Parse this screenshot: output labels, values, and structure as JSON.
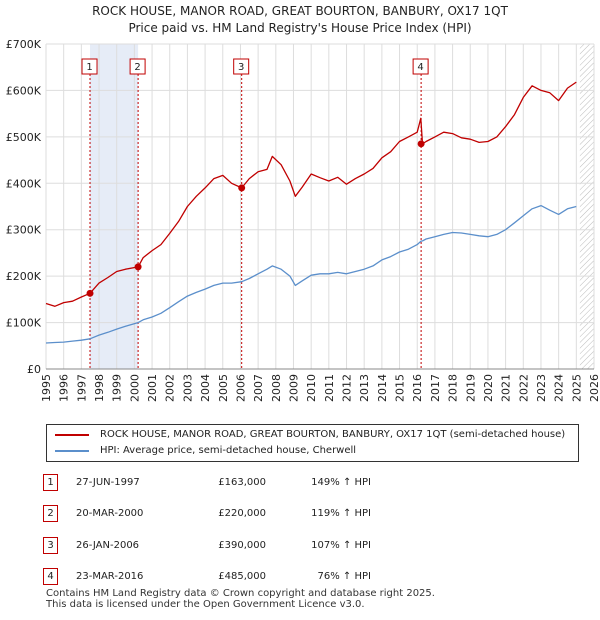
{
  "title_line1": "ROCK HOUSE, MANOR ROAD, GREAT BOURTON, BANBURY, OX17 1QT",
  "title_line2": "Price paid vs. HM Land Registry's House Price Index (HPI)",
  "colors": {
    "property": "#c00000",
    "hpi": "#5b8fcb",
    "shade": "#e6ecf7",
    "grid": "#dddddd",
    "marker": "#c00000"
  },
  "chart_data": {
    "type": "line",
    "title": "Price paid vs. HM Land Registry's House Price Index (HPI)",
    "xlabel": "",
    "ylabel": "",
    "xlim": [
      1995,
      2026
    ],
    "ylim": [
      0,
      700000
    ],
    "y_ticks": [
      {
        "value": 0,
        "label": "£0"
      },
      {
        "value": 100000,
        "label": "£100K"
      },
      {
        "value": 200000,
        "label": "£200K"
      },
      {
        "value": 300000,
        "label": "£300K"
      },
      {
        "value": 400000,
        "label": "£400K"
      },
      {
        "value": 500000,
        "label": "£500K"
      },
      {
        "value": 600000,
        "label": "£600K"
      },
      {
        "value": 700000,
        "label": "£700K"
      }
    ],
    "x_ticks": [
      "1995",
      "1996",
      "1997",
      "1998",
      "1999",
      "2000",
      "2001",
      "2002",
      "2003",
      "2004",
      "2005",
      "2006",
      "2007",
      "2008",
      "2009",
      "2010",
      "2011",
      "2012",
      "2013",
      "2014",
      "2015",
      "2016",
      "2017",
      "2018",
      "2019",
      "2020",
      "2021",
      "2022",
      "2023",
      "2024",
      "2025",
      "2026"
    ],
    "shaded_ranges": [
      [
        1997.49,
        2000.21
      ]
    ],
    "future_hatch_from": 2025.2,
    "series": [
      {
        "name": "ROCK HOUSE, MANOR ROAD, GREAT BOURTON, BANBURY, OX17 1QT (semi-detached house)",
        "color": "#c00000",
        "x": [
          1995.0,
          1995.5,
          1996.0,
          1996.5,
          1997.0,
          1997.49,
          1998.0,
          1998.5,
          1999.0,
          1999.5,
          2000.21,
          2000.5,
          2001.0,
          2001.5,
          2002.0,
          2002.5,
          2003.0,
          2003.5,
          2004.0,
          2004.5,
          2005.0,
          2005.5,
          2006.07,
          2006.5,
          2007.0,
          2007.5,
          2007.8,
          2008.3,
          2008.8,
          2009.1,
          2009.5,
          2010.0,
          2010.5,
          2011.0,
          2011.5,
          2012.0,
          2012.5,
          2013.0,
          2013.5,
          2014.0,
          2014.5,
          2015.0,
          2015.5,
          2016.0,
          2016.2,
          2016.3,
          2016.5,
          2017.0,
          2017.5,
          2018.0,
          2018.5,
          2019.0,
          2019.5,
          2020.0,
          2020.5,
          2021.0,
          2021.5,
          2022.0,
          2022.5,
          2023.0,
          2023.5,
          2024.0,
          2024.5,
          2025.0
        ],
        "values": [
          141000,
          135000,
          143000,
          146000,
          155000,
          163000,
          185000,
          197000,
          210000,
          215000,
          220000,
          240000,
          255000,
          268000,
          292000,
          318000,
          350000,
          372000,
          390000,
          410000,
          417000,
          400000,
          390000,
          410000,
          425000,
          430000,
          458000,
          440000,
          405000,
          372000,
          392000,
          420000,
          412000,
          405000,
          413000,
          398000,
          410000,
          420000,
          432000,
          455000,
          468000,
          490000,
          500000,
          510000,
          540000,
          485000,
          490000,
          500000,
          510000,
          507000,
          498000,
          495000,
          488000,
          490000,
          500000,
          522000,
          548000,
          585000,
          610000,
          600000,
          595000,
          578000,
          605000,
          618000
        ]
      },
      {
        "name": "HPI: Average price, semi-detached house, Cherwell",
        "color": "#5b8fcb",
        "x": [
          1995.0,
          1995.5,
          1996.0,
          1996.5,
          1997.0,
          1997.49,
          1998.0,
          1998.5,
          1999.0,
          1999.5,
          2000.21,
          2000.5,
          2001.0,
          2001.5,
          2002.0,
          2002.5,
          2003.0,
          2003.5,
          2004.0,
          2004.5,
          2005.0,
          2005.5,
          2006.07,
          2006.5,
          2007.0,
          2007.5,
          2007.8,
          2008.3,
          2008.8,
          2009.1,
          2009.5,
          2010.0,
          2010.5,
          2011.0,
          2011.5,
          2012.0,
          2012.5,
          2013.0,
          2013.5,
          2014.0,
          2014.5,
          2015.0,
          2015.5,
          2016.0,
          2016.2,
          2016.3,
          2016.5,
          2017.0,
          2017.5,
          2018.0,
          2018.5,
          2019.0,
          2019.5,
          2020.0,
          2020.5,
          2021.0,
          2021.5,
          2022.0,
          2022.5,
          2023.0,
          2023.5,
          2024.0,
          2024.5,
          2025.0
        ],
        "values": [
          56000,
          57000,
          58000,
          60000,
          62000,
          65000,
          73000,
          79000,
          86000,
          92000,
          100000,
          106000,
          112000,
          120000,
          132000,
          145000,
          157000,
          165000,
          172000,
          180000,
          185000,
          185000,
          188000,
          195000,
          205000,
          215000,
          222000,
          215000,
          200000,
          180000,
          190000,
          202000,
          205000,
          205000,
          208000,
          205000,
          210000,
          215000,
          222000,
          235000,
          242000,
          252000,
          258000,
          268000,
          275000,
          276000,
          280000,
          285000,
          290000,
          294000,
          293000,
          290000,
          287000,
          285000,
          290000,
          300000,
          315000,
          330000,
          345000,
          352000,
          342000,
          333000,
          345000,
          350000
        ]
      }
    ],
    "markers": [
      {
        "label": "1",
        "x": 1997.49,
        "value": 163000
      },
      {
        "label": "2",
        "x": 2000.21,
        "value": 220000
      },
      {
        "label": "3",
        "x": 2006.07,
        "value": 390000
      },
      {
        "label": "4",
        "x": 2016.22,
        "value": 485000
      }
    ],
    "legend": "bottom"
  },
  "legend": {
    "property": "ROCK HOUSE, MANOR ROAD, GREAT BOURTON, BANBURY, OX17 1QT (semi-detached house)",
    "hpi": "HPI: Average price, semi-detached house, Cherwell"
  },
  "transactions": [
    {
      "num": "1",
      "date": "27-JUN-1997",
      "price": "£163,000",
      "hpi": "149% ↑ HPI"
    },
    {
      "num": "2",
      "date": "20-MAR-2000",
      "price": "£220,000",
      "hpi": "119% ↑ HPI"
    },
    {
      "num": "3",
      "date": "26-JAN-2006",
      "price": "£390,000",
      "hpi": "107% ↑ HPI"
    },
    {
      "num": "4",
      "date": "23-MAR-2016",
      "price": "£485,000",
      "hpi": "76% ↑ HPI"
    }
  ],
  "footer_line1": "Contains HM Land Registry data © Crown copyright and database right 2025.",
  "footer_line2": "This data is licensed under the Open Government Licence v3.0."
}
